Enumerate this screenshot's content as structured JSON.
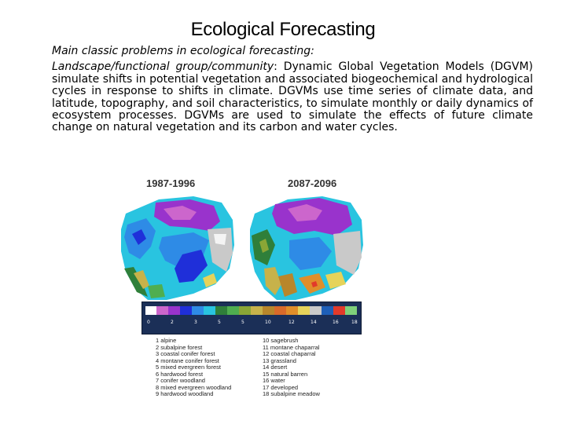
{
  "title": "Ecological Forecasting",
  "subtitle": "Main classic problems in ecological forecasting:",
  "paragraph": {
    "lead": "Landscape/functional group/community",
    "body": ": Dynamic Global Vegetation Models (DGVM) simulate shifts in potential vegetation and associated biogeochemical and hydrological cycles in response to shifts in climate. DGVMs use time series of climate data, and latitude, topography, and soil characteristics, to simulate monthly or daily dynamics of ecosystem processes. DGVMs are used to simulate the effects of future climate change on natural vegetation and its carbon and water cycles."
  },
  "figure": {
    "period_left": "1987-1996",
    "period_right": "2087-2096",
    "scale_ticks": [
      "0",
      "2",
      "3",
      "5",
      "5",
      "10",
      "12",
      "14",
      "16",
      "18"
    ],
    "legend_left": [
      "1 alpine",
      "2 subalpine forest",
      "3 coastal conifer forest",
      "4 montane conifer forest",
      "5 mixed evergreen forest",
      "6 hardwood forest",
      "7 conifer woodland",
      "8 mixed evergreen woodland",
      "9 hardwood woodland"
    ],
    "legend_right": [
      "10 sagebrush",
      "11 montane chaparral",
      "12 coastal chaparral",
      "13 grassland",
      "14 desert",
      "15 natural barren",
      "16 water",
      "17 developed",
      "18 subalpine meadow"
    ],
    "colors": {
      "alpine": "#cc66cc",
      "subalpine": "#9933cc",
      "coastal_conifer": "#1f2fd9",
      "montane_conifer": "#2e8be6",
      "mixed_evergreen": "#29c4e0",
      "hardwood_forest": "#2f7f3a",
      "conifer_woodland": "#4fae4f",
      "mixed_woodland": "#8aa636",
      "hardwood_woodland": "#c7b24a",
      "sagebrush": "#b8862b",
      "grassland": "#e08e2a",
      "desert": "#e6d35a",
      "barren": "#c9c9c9",
      "developed": "#e23a2a"
    }
  }
}
